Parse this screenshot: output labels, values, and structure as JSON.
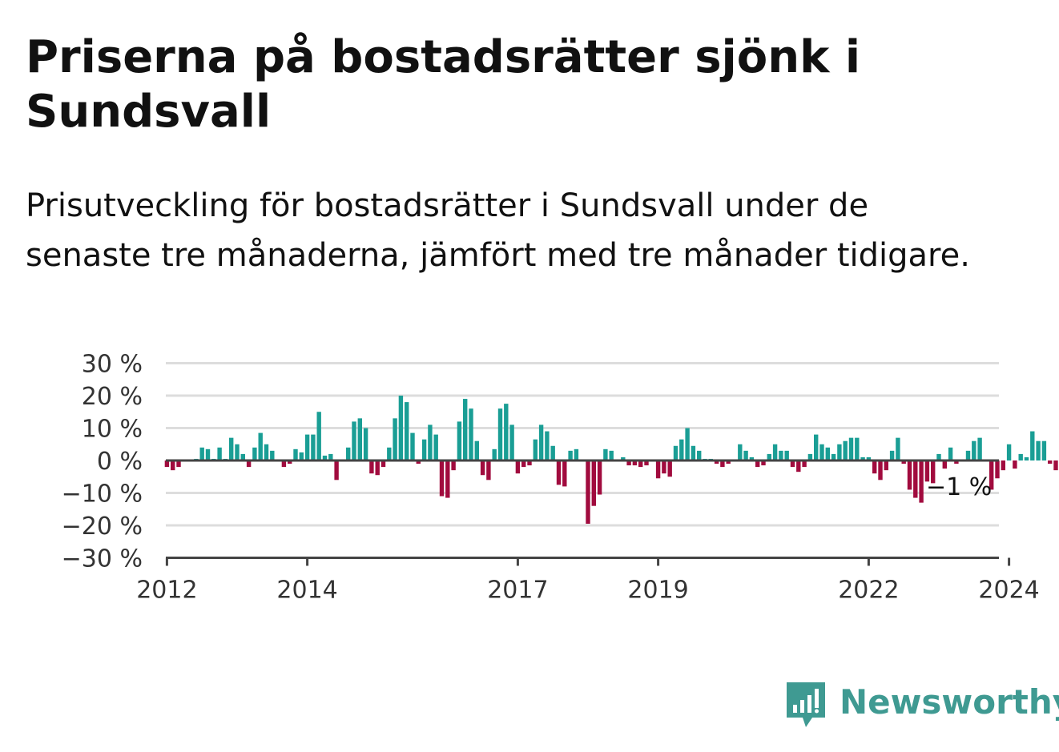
{
  "title": "Priserna på bostadsrätter sjönk i Sundsvall",
  "subtitle": "Prisutveckling för bostadsrätter i Sundsvall under de senaste tre månaderna, jämfört med tre månader tidigare.",
  "brand": {
    "name": "Newsworthy",
    "color": "#3f9a92"
  },
  "colors": {
    "positive": "#1a9e95",
    "negative": "#a10b3e",
    "grid": "#dddddd",
    "axis": "#444444"
  },
  "chart_data": {
    "type": "bar",
    "title": "Priserna på bostadsrätter sjönk i Sundsvall",
    "xlabel": "",
    "ylabel": "",
    "x_start": "2011-01",
    "x_step": "month",
    "x_range": [
      "2011-01",
      "2025-05"
    ],
    "ylim": [
      -30,
      30
    ],
    "yticks": [
      30,
      20,
      10,
      0,
      -10,
      -20,
      -30
    ],
    "ytick_labels": [
      "30 %",
      "20 %",
      "10 %",
      "0 %",
      "−10 %",
      "−20 %",
      "−30 %"
    ],
    "xtick_labels": [
      {
        "x": "2012-01",
        "label": "2012"
      },
      {
        "x": "2014-01",
        "label": "2014"
      },
      {
        "x": "2017-01",
        "label": "2017"
      },
      {
        "x": "2019-01",
        "label": "2019"
      },
      {
        "x": "2022-01",
        "label": "2022"
      },
      {
        "x": "2024-01",
        "label": "2024"
      }
    ],
    "grid": true,
    "annotation": {
      "x": "2025-03",
      "label": "−1 %"
    },
    "values": [
      null,
      null,
      null,
      null,
      null,
      null,
      null,
      null,
      null,
      null,
      null,
      null,
      -2,
      -3,
      -2,
      0,
      0,
      0.5,
      4,
      3.5,
      0.5,
      4,
      0.5,
      7,
      5,
      2,
      -2,
      4,
      8.5,
      5,
      3,
      0,
      -2,
      -1,
      3.5,
      2.5,
      8,
      8,
      15,
      1.5,
      2,
      -6,
      0,
      4,
      12,
      13,
      10,
      -4,
      -4.5,
      -2,
      4,
      13,
      20,
      18,
      8.5,
      -1,
      6.5,
      11,
      8,
      -11,
      -11.5,
      -3,
      12,
      19,
      16,
      6,
      -4.5,
      -6,
      3.5,
      16,
      17.5,
      11,
      -4,
      -2,
      -1.5,
      6.5,
      11,
      9,
      4.5,
      -7.5,
      -8,
      3,
      3.5,
      0,
      -19.5,
      -14,
      -10.5,
      3.5,
      3,
      0,
      1,
      -1.5,
      -1.5,
      -2,
      -1.5,
      0,
      -5.5,
      -4,
      -5,
      4.5,
      6.5,
      10,
      4.5,
      3,
      0.5,
      0.5,
      -1,
      -2,
      -1,
      0,
      5,
      3,
      1,
      -2,
      -1.5,
      2,
      5,
      3,
      3,
      -2,
      -3.5,
      -2,
      2,
      8,
      5,
      4,
      2,
      5,
      6,
      7,
      7,
      1,
      1,
      -4,
      -6,
      -3,
      3,
      7,
      -1,
      -9,
      -11.5,
      -13,
      -6.5,
      -7,
      2,
      -2.5,
      4,
      -1,
      0,
      3,
      6,
      7,
      0,
      -9,
      -5.5,
      -3,
      5,
      -2.5,
      2,
      1,
      9,
      6,
      6,
      -1,
      -3,
      -3,
      -1.5,
      null,
      null,
      null,
      null,
      null,
      null
    ]
  }
}
